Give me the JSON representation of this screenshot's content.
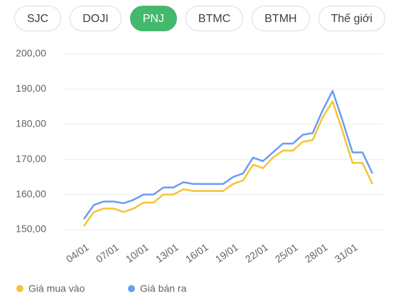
{
  "tabs": [
    "SJC",
    "DOJI",
    "PNJ",
    "BTMC",
    "BTMH",
    "Thế giới"
  ],
  "active_tab": 2,
  "chart_data": {
    "type": "line",
    "categories": [
      "04/01",
      null,
      null,
      "07/01",
      null,
      null,
      "10/01",
      null,
      null,
      "13/01",
      null,
      null,
      "16/01",
      null,
      null,
      "19/01",
      null,
      null,
      "22/01",
      null,
      null,
      "25/01",
      null,
      null,
      "28/01",
      null,
      null,
      "31/01",
      null,
      null
    ],
    "series": [
      {
        "name": "Giá mua vào",
        "color": "#f5c431",
        "values": [
          151,
          155,
          156,
          156,
          155,
          156,
          157.7,
          157.7,
          160,
          160,
          161.5,
          161,
          161,
          161,
          161,
          163,
          164,
          168.5,
          167.5,
          170.5,
          172.5,
          172.5,
          175,
          175.5,
          182,
          186.5,
          178,
          169,
          169,
          163
        ]
      },
      {
        "name": "Giá bán ra",
        "color": "#6a9cf2",
        "values": [
          153,
          157,
          158,
          158,
          157.5,
          158.5,
          160,
          160,
          162,
          162,
          163.5,
          163,
          163,
          163,
          163,
          165,
          166,
          170.5,
          169.5,
          172,
          174.5,
          174.5,
          177,
          177.5,
          184,
          189.5,
          181,
          172,
          172,
          166
        ]
      }
    ],
    "ylim": [
      150,
      200
    ],
    "yticks": [
      {
        "value": 150,
        "label": "150,00"
      },
      {
        "value": 160,
        "label": "160,00"
      },
      {
        "value": 170,
        "label": "170,00"
      },
      {
        "value": 180,
        "label": "180,00"
      },
      {
        "value": 190,
        "label": "190,00"
      },
      {
        "value": 200,
        "label": "200,00"
      }
    ],
    "grid": true
  }
}
